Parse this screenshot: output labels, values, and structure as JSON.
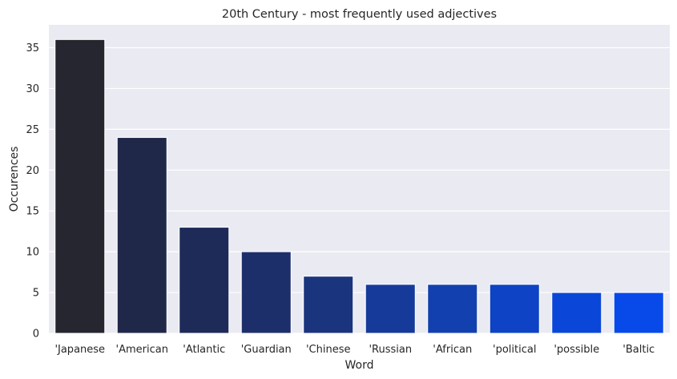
{
  "chart_data": {
    "type": "bar",
    "title": "20th Century - most frequently used adjectives",
    "xlabel": "Word",
    "ylabel": "Occurences",
    "categories": [
      "'Japanese",
      "'American",
      "'Atlantic",
      "'Guardian",
      "'Chinese",
      "'Russian",
      "'African",
      "'political",
      "'possible",
      "'Baltic"
    ],
    "values": [
      36,
      24,
      13,
      10,
      7,
      6,
      6,
      6,
      5,
      5
    ],
    "ylim": [
      0,
      37.8
    ],
    "yticks": [
      0,
      5,
      10,
      15,
      20,
      25,
      30,
      35
    ],
    "grid": true,
    "colors": [
      "#25262f",
      "#20284a",
      "#1e2b59",
      "#1d2f6b",
      "#1b347e",
      "#163a9a",
      "#1240ae",
      "#0d43c4",
      "#0a47d8",
      "#0849ea"
    ],
    "background": "#eaeaf2"
  }
}
